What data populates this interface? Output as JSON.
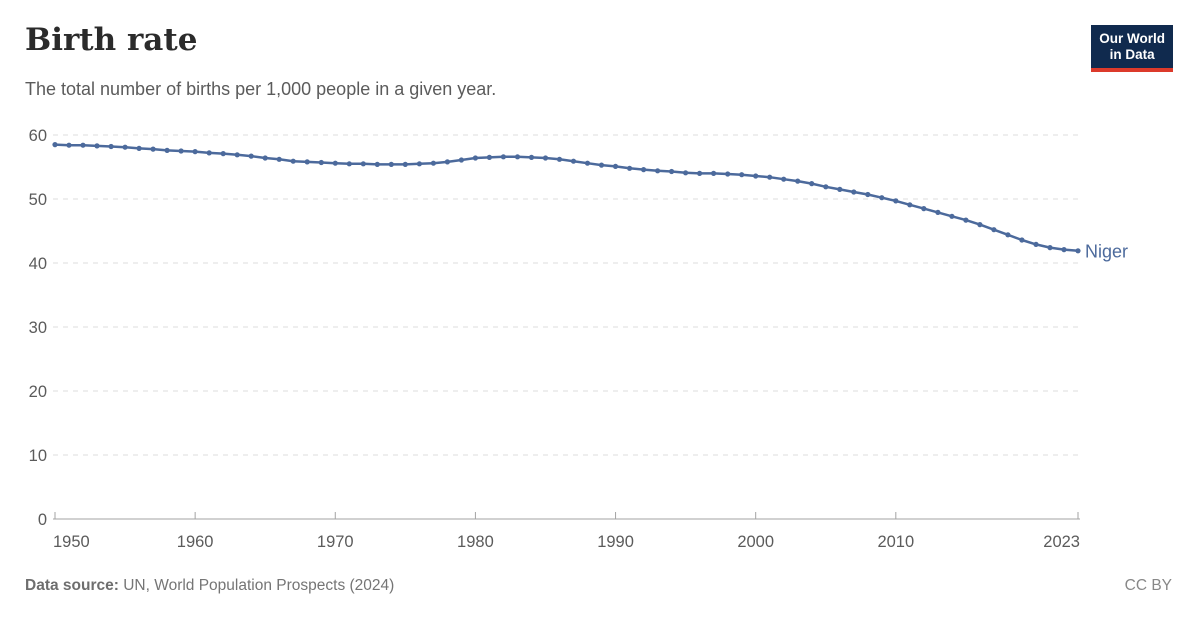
{
  "header": {
    "title": "Birth rate",
    "subtitle": "The total number of births per 1,000 people in a given year.",
    "logo": {
      "line1": "Our World",
      "line2": "in Data"
    }
  },
  "footer": {
    "source_label": "Data source:",
    "source_text": "UN, World Population Prospects (2024)",
    "license": "CC BY"
  },
  "colors": {
    "series_blue": "#4c6a9c",
    "gridline": "#dcdcdc",
    "axis": "#a3a3a3",
    "axis_text": "#5b5b5b",
    "logo_navy": "#102a4e",
    "logo_red": "#dc3a2b"
  },
  "chart_data": {
    "type": "line",
    "title": "Birth rate",
    "xlabel": "",
    "ylabel": "",
    "xlim": [
      1950,
      2023
    ],
    "ylim": [
      0,
      60
    ],
    "x_ticks": [
      1950,
      1960,
      1970,
      1980,
      1990,
      2000,
      2010,
      2023
    ],
    "y_ticks": [
      0,
      10,
      20,
      30,
      40,
      50,
      60
    ],
    "grid": "horizontal-dashed",
    "legend_position": "end-of-line",
    "markers": true,
    "series": [
      {
        "name": "Niger",
        "color": "#4c6a9c",
        "x": [
          1950,
          1951,
          1952,
          1953,
          1954,
          1955,
          1956,
          1957,
          1958,
          1959,
          1960,
          1961,
          1962,
          1963,
          1964,
          1965,
          1966,
          1967,
          1968,
          1969,
          1970,
          1971,
          1972,
          1973,
          1974,
          1975,
          1976,
          1977,
          1978,
          1979,
          1980,
          1981,
          1982,
          1983,
          1984,
          1985,
          1986,
          1987,
          1988,
          1989,
          1990,
          1991,
          1992,
          1993,
          1994,
          1995,
          1996,
          1997,
          1998,
          1999,
          2000,
          2001,
          2002,
          2003,
          2004,
          2005,
          2006,
          2007,
          2008,
          2009,
          2010,
          2011,
          2012,
          2013,
          2014,
          2015,
          2016,
          2017,
          2018,
          2019,
          2020,
          2021,
          2022,
          2023
        ],
        "values": [
          58.5,
          58.4,
          58.4,
          58.3,
          58.2,
          58.1,
          57.9,
          57.8,
          57.6,
          57.5,
          57.4,
          57.2,
          57.1,
          56.9,
          56.7,
          56.4,
          56.2,
          55.9,
          55.8,
          55.7,
          55.6,
          55.5,
          55.5,
          55.4,
          55.4,
          55.4,
          55.5,
          55.6,
          55.8,
          56.1,
          56.4,
          56.5,
          56.6,
          56.6,
          56.5,
          56.4,
          56.2,
          55.9,
          55.6,
          55.3,
          55.1,
          54.8,
          54.6,
          54.4,
          54.3,
          54.1,
          54.0,
          54.0,
          53.9,
          53.8,
          53.6,
          53.4,
          53.1,
          52.8,
          52.4,
          51.9,
          51.5,
          51.1,
          50.7,
          50.2,
          49.7,
          49.1,
          48.5,
          47.9,
          47.3,
          46.7,
          46.0,
          45.2,
          44.4,
          43.6,
          42.9,
          42.4,
          42.1,
          41.9
        ]
      }
    ]
  }
}
